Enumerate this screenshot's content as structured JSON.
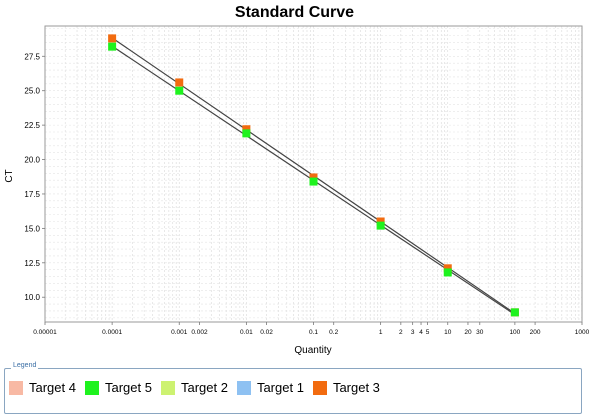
{
  "chart_data": {
    "type": "scatter",
    "title": "Standard Curve",
    "xlabel": "Quantity",
    "ylabel": "CT",
    "x_scale": "log",
    "xlim": [
      1e-05,
      1000
    ],
    "ylim": [
      8.2,
      29.7
    ],
    "grid": true,
    "x_tick_labels": [
      {
        "v": 1e-05,
        "label": "0.00001"
      },
      {
        "v": 0.0001,
        "label": "0.0001"
      },
      {
        "v": 0.001,
        "label": "0.001"
      },
      {
        "v": 0.002,
        "label": "0.002"
      },
      {
        "v": 0.01,
        "label": "0.01"
      },
      {
        "v": 0.02,
        "label": "0.02"
      },
      {
        "v": 0.1,
        "label": "0.1"
      },
      {
        "v": 0.2,
        "label": "0.2"
      },
      {
        "v": 1,
        "label": "1"
      },
      {
        "v": 2,
        "label": "2"
      },
      {
        "v": 3,
        "label": "3"
      },
      {
        "v": 4,
        "label": "4"
      },
      {
        "v": 5,
        "label": "5"
      },
      {
        "v": 10,
        "label": "10"
      },
      {
        "v": 20,
        "label": "20"
      },
      {
        "v": 30,
        "label": "30"
      },
      {
        "v": 100,
        "label": "100"
      },
      {
        "v": 200,
        "label": "200"
      },
      {
        "v": 1000,
        "label": "1000"
      }
    ],
    "y_ticks": [
      10.0,
      12.5,
      15.0,
      17.5,
      20.0,
      22.5,
      25.0,
      27.5
    ],
    "y_tick_labels": [
      "10.0",
      "12.5",
      "15.0",
      "17.5",
      "20.0",
      "22.5",
      "25.0",
      "27.5"
    ],
    "series": [
      {
        "name": "Target 3",
        "color": "#f26b0f",
        "x": [
          0.0001,
          0.001,
          0.01,
          0.1,
          1,
          10,
          100
        ],
        "y": [
          28.8,
          25.6,
          22.2,
          18.7,
          15.5,
          12.1,
          8.9
        ]
      },
      {
        "name": "Target 5",
        "color": "#1ef21e",
        "x": [
          0.0001,
          0.001,
          0.01,
          0.1,
          1,
          10,
          100
        ],
        "y": [
          28.2,
          25.0,
          21.9,
          18.4,
          15.2,
          11.8,
          8.9
        ]
      }
    ]
  },
  "legend": {
    "title": "Legend",
    "items": [
      {
        "label": "Target 4",
        "color": "#f8b9a4"
      },
      {
        "label": "Target 5",
        "color": "#1ef21e"
      },
      {
        "label": "Target 2",
        "color": "#cdf271"
      },
      {
        "label": "Target 1",
        "color": "#8ec1f2"
      },
      {
        "label": "Target 3",
        "color": "#f26b0f"
      }
    ]
  }
}
